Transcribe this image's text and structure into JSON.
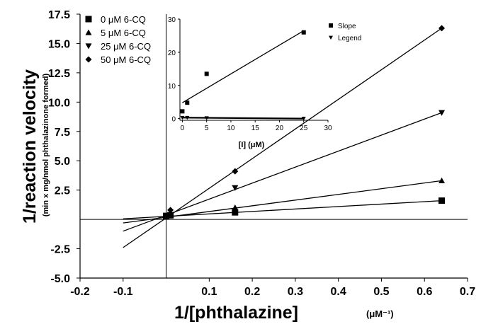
{
  "chart_data": [
    {
      "type": "line",
      "xlabel": "1/[phthalazine]",
      "xlabel_unit": "(μM⁻¹)",
      "ylabel": "1/reaction velocity",
      "ylabel_sub": "(min x mg/nmol phthalazinone formed)",
      "xlim": [
        -0.2,
        0.7
      ],
      "ylim": [
        -5.0,
        17.5
      ],
      "x_ticks": [
        -0.2,
        -0.1,
        0.1,
        0.2,
        0.3,
        0.4,
        0.5,
        0.6,
        0.7
      ],
      "x_tick_labels": [
        "-0.2",
        "-0.1",
        "0.1",
        "0.2",
        "0.3",
        "0.4",
        "0.5",
        "0.6",
        "0.7"
      ],
      "y_ticks": [
        -5.0,
        -2.5,
        2.5,
        5.0,
        7.5,
        10.0,
        12.5,
        15.0,
        17.5
      ],
      "y_tick_labels": [
        "-5.0",
        "-2.5",
        "2.5",
        "5.0",
        "7.5",
        "10.0",
        "12.5",
        "15.0",
        "17.5"
      ],
      "legend_position": "top-left",
      "series": [
        {
          "name": "0 μM 6-CQ",
          "marker": "square",
          "x": [
            0.0,
            0.01,
            0.16,
            0.64
          ],
          "y": [
            0.3,
            0.35,
            0.6,
            1.6
          ],
          "line_x": [
            -0.1,
            0.64
          ],
          "line_y": [
            0.05,
            1.6
          ]
        },
        {
          "name": "5 μM 6-CQ",
          "marker": "triangle-up",
          "x": [
            0.0,
            0.01,
            0.16,
            0.64
          ],
          "y": [
            0.3,
            0.35,
            1.0,
            3.3
          ],
          "line_x": [
            -0.1,
            0.64
          ],
          "line_y": [
            -0.3,
            3.3
          ]
        },
        {
          "name": "25 μM 6-CQ",
          "marker": "triangle-down",
          "x": [
            0.0,
            0.01,
            0.16,
            0.64
          ],
          "y": [
            0.3,
            0.4,
            2.7,
            9.1
          ],
          "line_x": [
            -0.1,
            0.64
          ],
          "line_y": [
            -1.0,
            9.1
          ]
        },
        {
          "name": "50 μM 6-CQ",
          "marker": "diamond",
          "x": [
            0.0,
            0.01,
            0.16,
            0.64
          ],
          "y": [
            0.3,
            0.8,
            4.1,
            16.3
          ],
          "line_x": [
            -0.1,
            0.64
          ],
          "line_y": [
            -2.4,
            16.3
          ]
        }
      ]
    },
    {
      "type": "line",
      "role": "inset",
      "xlabel": "[I] (μM)",
      "ylabel": "",
      "xlim": [
        -0.5,
        30
      ],
      "ylim": [
        -0.5,
        30
      ],
      "x_ticks": [
        0,
        5,
        10,
        15,
        20,
        25,
        30
      ],
      "x_tick_labels": [
        "0",
        "5",
        "10",
        "15",
        "20",
        "25",
        "30"
      ],
      "y_ticks": [
        0,
        10,
        20,
        30
      ],
      "y_tick_labels": [
        "0",
        "10",
        "20",
        "30"
      ],
      "legend_position": "top-right",
      "series": [
        {
          "name": "Slope",
          "marker": "square",
          "x": [
            0,
            1,
            5,
            25
          ],
          "y": [
            2.2,
            4.8,
            13.5,
            26
          ],
          "line_x": [
            0,
            25
          ],
          "line_y": [
            4.8,
            26.5
          ]
        },
        {
          "name": "Legend",
          "marker": "triangle-down",
          "x": [
            0,
            1,
            5,
            25
          ],
          "y": [
            0.3,
            0.3,
            0.2,
            0.05
          ],
          "line_x": [
            0,
            25
          ],
          "line_y": [
            0.3,
            0.0
          ]
        }
      ]
    }
  ]
}
